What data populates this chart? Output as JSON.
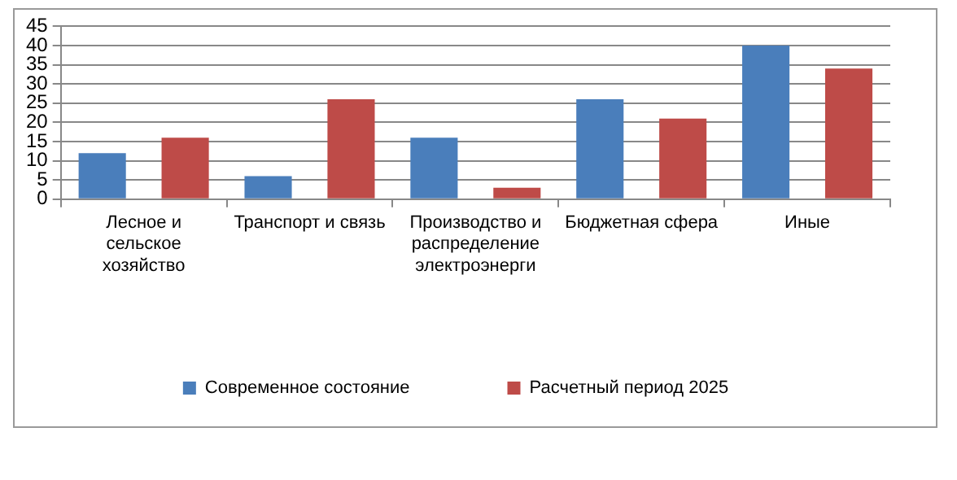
{
  "chart_data": {
    "type": "bar",
    "categories": [
      "Лесное и сельское хозяйство",
      "Транспорт и связь",
      "Производство и распределение электроэнерги",
      "Бюджетная сфера",
      "Иные"
    ],
    "series": [
      {
        "name": "Современное состояние",
        "color": "#4a7ebb",
        "values": [
          12,
          6,
          16,
          26,
          40
        ]
      },
      {
        "name": "Расчетный период 2025",
        "color": "#be4b48",
        "values": [
          16,
          26,
          3,
          21,
          34
        ]
      }
    ],
    "ylim": [
      0,
      45
    ],
    "yticks": [
      0,
      5,
      10,
      15,
      20,
      25,
      30,
      35,
      40,
      45
    ],
    "grid": "y",
    "legend": "bottom"
  }
}
